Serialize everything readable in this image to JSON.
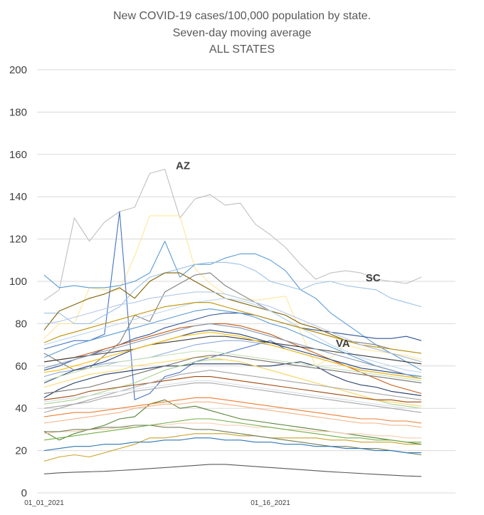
{
  "chart_data": {
    "type": "line",
    "title": [
      "New COVID-19 cases/100,000 population by state.",
      "Seven-day moving average",
      "ALL STATES"
    ],
    "xlabel": "",
    "ylabel": "",
    "ylim": [
      0,
      200
    ],
    "yticks": [
      0,
      20,
      40,
      60,
      80,
      100,
      120,
      140,
      160,
      180,
      200
    ],
    "x_tick_labels": [
      {
        "day": 1,
        "label": "01_01_2021"
      },
      {
        "day": 16,
        "label": "01_16_2021"
      }
    ],
    "x_days": [
      1,
      2,
      3,
      4,
      5,
      6,
      7,
      8,
      9,
      10,
      11,
      12,
      13,
      14,
      15,
      16,
      17,
      18,
      19,
      20,
      21,
      22,
      23,
      24,
      25,
      26,
      27,
      28
    ],
    "grid": true,
    "legend": "none",
    "annotations": [
      {
        "text": "AZ",
        "x": 10.2,
        "y": 153
      },
      {
        "text": "SC",
        "x": 22.8,
        "y": 100
      },
      {
        "text": "VA",
        "x": 20.8,
        "y": 69
      }
    ],
    "series": [
      {
        "color": "#bfbfbf",
        "values": [
          91,
          96,
          130,
          119,
          128,
          133,
          135,
          151,
          153,
          130,
          139,
          141,
          136,
          137,
          127,
          122,
          116,
          108,
          101,
          104,
          105,
          104,
          101,
          100,
          99,
          102,
          null,
          null
        ]
      },
      {
        "color": "#ffe699",
        "values": [
          73,
          80,
          80,
          97,
          96,
          96,
          112,
          131,
          131,
          131,
          106,
          99,
          94,
          92,
          91,
          92,
          93,
          76,
          60,
          64,
          70,
          68,
          67,
          66,
          65,
          63,
          null,
          null
        ]
      },
      {
        "color": "#4472c4",
        "values": [
          68,
          70,
          72,
          72,
          75,
          133,
          44,
          47,
          55,
          57,
          62,
          64,
          66,
          68,
          70,
          72,
          68,
          66,
          64,
          62,
          60,
          58,
          57,
          56,
          55,
          54,
          null,
          null
        ]
      },
      {
        "color": "#5b9bd5",
        "values": [
          103,
          97,
          98,
          97,
          97,
          98,
          100,
          104,
          119,
          102,
          108,
          108,
          111,
          113,
          113,
          110,
          105,
          96,
          92,
          85,
          80,
          75,
          70,
          66,
          62,
          58,
          null,
          null
        ]
      },
      {
        "color": "#2f5597",
        "values": [
          58,
          60,
          63,
          65,
          68,
          70,
          73,
          75,
          78,
          80,
          82,
          84,
          85,
          85,
          84,
          82,
          80,
          78,
          77,
          76,
          75,
          74,
          73,
          73,
          74,
          72,
          null,
          null
        ]
      },
      {
        "color": "#1f3864",
        "values": [
          45,
          49,
          52,
          54,
          56,
          57,
          58,
          59,
          60,
          60,
          61,
          61,
          61,
          61,
          60,
          60,
          61,
          62,
          60,
          56,
          53,
          51,
          50,
          48,
          47,
          46,
          null,
          null
        ]
      },
      {
        "color": "#7f7f7f",
        "values": [
          66,
          62,
          58,
          59,
          65,
          71,
          84,
          81,
          95,
          99,
          103,
          104,
          98,
          94,
          90,
          86,
          82,
          78,
          76,
          74,
          72,
          71,
          70,
          68,
          67,
          66,
          null,
          null
        ]
      },
      {
        "color": "#9dc3e6",
        "values": [
          85,
          85,
          80,
          80,
          84,
          88,
          96,
          102,
          104,
          106,
          108,
          109,
          109,
          108,
          105,
          100,
          98,
          96,
          99,
          100,
          98,
          97,
          96,
          92,
          90,
          88,
          null,
          null
        ]
      },
      {
        "color": "#c9a227",
        "values": [
          15,
          17,
          18,
          17,
          19,
          21,
          23,
          26,
          26,
          27,
          28,
          28,
          28,
          27,
          27,
          26,
          26,
          26,
          26,
          25,
          25,
          24,
          24,
          24,
          23,
          23,
          null,
          null
        ]
      },
      {
        "color": "#7f6000",
        "values": [
          77,
          86,
          89,
          92,
          94,
          97,
          92,
          100,
          104,
          104,
          100,
          96,
          92,
          90,
          88,
          86,
          84,
          80,
          78,
          75,
          72,
          70,
          68,
          66,
          64,
          62,
          null,
          null
        ]
      },
      {
        "color": "#a9d18e",
        "values": [
          42,
          43,
          44,
          46,
          48,
          50,
          52,
          55,
          58,
          60,
          62,
          63,
          63,
          62,
          60,
          58,
          56,
          54,
          52,
          50,
          48,
          46,
          44,
          42,
          41,
          40,
          null,
          null
        ]
      },
      {
        "color": "#548235",
        "values": [
          29,
          25,
          28,
          30,
          32,
          35,
          36,
          42,
          44,
          40,
          41,
          39,
          37,
          35,
          34,
          33,
          32,
          31,
          30,
          29,
          28,
          27,
          26,
          25,
          24,
          23,
          null,
          null
        ]
      },
      {
        "color": "#f4b183",
        "values": [
          33,
          34,
          35,
          36,
          37,
          38,
          40,
          41,
          42,
          42,
          43,
          43,
          42,
          41,
          40,
          39,
          38,
          37,
          36,
          35,
          34,
          33,
          33,
          32,
          32,
          31,
          null,
          null
        ]
      },
      {
        "color": "#c55a11",
        "values": [
          62,
          63,
          64,
          66,
          68,
          70,
          72,
          74,
          76,
          78,
          79,
          80,
          80,
          79,
          77,
          75,
          72,
          69,
          66,
          63,
          60,
          57,
          54,
          51,
          49,
          47,
          null,
          null
        ]
      },
      {
        "color": "#bdd7ee",
        "values": [
          70,
          72,
          74,
          76,
          78,
          80,
          82,
          84,
          86,
          88,
          90,
          91,
          92,
          91,
          89,
          86,
          82,
          78,
          74,
          70,
          67,
          64,
          62,
          60,
          58,
          57,
          null,
          null
        ]
      },
      {
        "color": "#8faadc",
        "values": [
          55,
          57,
          58,
          60,
          61,
          62,
          63,
          64,
          66,
          68,
          70,
          71,
          72,
          72,
          71,
          70,
          68,
          66,
          64,
          62,
          60,
          58,
          57,
          56,
          55,
          54,
          null,
          null
        ]
      },
      {
        "color": "#a6a6a6",
        "values": [
          40,
          41,
          42,
          43,
          45,
          46,
          48,
          49,
          50,
          51,
          52,
          52,
          51,
          50,
          49,
          48,
          47,
          46,
          45,
          44,
          43,
          42,
          41,
          40,
          39,
          38,
          null,
          null
        ]
      },
      {
        "color": "#ffd966",
        "values": [
          50,
          52,
          54,
          56,
          57,
          58,
          60,
          61,
          62,
          63,
          64,
          64,
          63,
          62,
          60,
          58,
          56,
          54,
          52,
          50,
          48,
          46,
          44,
          43,
          42,
          41,
          null,
          null
        ]
      },
      {
        "color": "#264478",
        "values": [
          52,
          55,
          58,
          60,
          62,
          65,
          68,
          70,
          72,
          74,
          76,
          77,
          76,
          75,
          73,
          71,
          69,
          67,
          65,
          63,
          61,
          59,
          58,
          57,
          56,
          55,
          null,
          null
        ]
      },
      {
        "color": "#3a3a3a",
        "values": [
          62,
          63,
          64,
          65,
          66,
          67,
          68,
          70,
          71,
          72,
          73,
          74,
          74,
          73,
          72,
          71,
          70,
          69,
          68,
          67,
          66,
          65,
          64,
          63,
          62,
          61,
          null,
          null
        ]
      },
      {
        "color": "#767171",
        "values": [
          47,
          48,
          49,
          50,
          52,
          54,
          56,
          58,
          60,
          62,
          64,
          65,
          65,
          64,
          63,
          62,
          61,
          60,
          59,
          58,
          57,
          56,
          55,
          54,
          53,
          52,
          null,
          null
        ]
      },
      {
        "color": "#ed7d31",
        "values": [
          36,
          37,
          38,
          38,
          39,
          40,
          41,
          42,
          43,
          44,
          45,
          45,
          44,
          43,
          42,
          41,
          40,
          39,
          38,
          37,
          36,
          35,
          35,
          34,
          34,
          33,
          null,
          null
        ]
      },
      {
        "color": "#f8cbad",
        "values": [
          28,
          29,
          29,
          30,
          30,
          31,
          31,
          32,
          32,
          33,
          33,
          33,
          32,
          32,
          31,
          31,
          30,
          30,
          29,
          29,
          28,
          28,
          27,
          27,
          26,
          26,
          null,
          null
        ]
      },
      {
        "color": "#595959",
        "values": [
          9,
          9.5,
          9.8,
          10,
          10.2,
          10.6,
          11,
          11.5,
          12,
          12.5,
          13,
          13.5,
          13.5,
          13,
          12.5,
          12,
          11.5,
          11,
          10.5,
          10,
          9.6,
          9.2,
          8.8,
          8.4,
          8,
          7.8,
          null,
          null
        ]
      },
      {
        "color": "#6f7f5a",
        "values": [
          29,
          29,
          30,
          30,
          31,
          31,
          32,
          32,
          31,
          31,
          30,
          30,
          29,
          28,
          27,
          26,
          25,
          24,
          23,
          22,
          22,
          21,
          21,
          20,
          19,
          18,
          null,
          null
        ]
      },
      {
        "color": "#9e480e",
        "values": [
          44,
          45,
          46,
          48,
          49,
          50,
          51,
          52,
          53,
          54,
          55,
          55,
          54,
          53,
          52,
          51,
          50,
          49,
          48,
          47,
          46,
          45,
          44,
          44,
          43,
          43,
          null,
          null
        ]
      },
      {
        "color": "#bf9000",
        "values": [
          71,
          74,
          76,
          78,
          80,
          82,
          84,
          86,
          88,
          89,
          90,
          90,
          88,
          86,
          84,
          82,
          80,
          78,
          76,
          74,
          72,
          70,
          69,
          68,
          67,
          66,
          null,
          null
        ]
      },
      {
        "color": "#5a9bd5",
        "values": [
          64,
          67,
          70,
          72,
          74,
          76,
          78,
          80,
          82,
          84,
          86,
          87,
          86,
          85,
          83,
          80,
          78,
          75,
          72,
          69,
          66,
          63,
          60,
          58,
          56,
          55,
          null,
          null
        ]
      },
      {
        "color": "#a5a5a5",
        "values": [
          38,
          40,
          42,
          44,
          46,
          48,
          50,
          52,
          54,
          56,
          57,
          58,
          57,
          56,
          55,
          54,
          53,
          52,
          51,
          50,
          49,
          48,
          47,
          46,
          45,
          44,
          null,
          null
        ]
      },
      {
        "color": "#c5e0b4",
        "values": [
          53,
          55,
          57,
          59,
          60,
          62,
          63,
          64,
          65,
          66,
          67,
          67,
          66,
          65,
          64,
          63,
          62,
          61,
          60,
          59,
          58,
          57,
          56,
          55,
          54,
          53,
          null,
          null
        ]
      },
      {
        "color": "#2e75b6",
        "values": [
          20,
          21,
          22,
          22,
          23,
          23,
          24,
          24,
          25,
          25,
          26,
          26,
          25,
          25,
          24,
          24,
          23,
          23,
          22,
          22,
          21,
          21,
          20,
          20,
          19,
          19,
          null,
          null
        ]
      },
      {
        "color": "#8497b0",
        "values": [
          59,
          61,
          63,
          65,
          67,
          69,
          71,
          73,
          75,
          77,
          79,
          80,
          79,
          78,
          76,
          74,
          72,
          70,
          68,
          66,
          64,
          62,
          60,
          58,
          56,
          54,
          null,
          null
        ]
      },
      {
        "color": "#b4c7e7",
        "values": [
          80,
          81,
          83,
          85,
          87,
          89,
          90,
          92,
          93,
          94,
          95,
          95,
          94,
          92,
          90,
          88,
          85,
          82,
          79,
          76,
          73,
          70,
          68,
          66,
          64,
          62,
          null,
          null
        ]
      },
      {
        "color": "#d6dce5",
        "values": [
          43,
          44,
          45,
          46,
          47,
          48,
          49,
          50,
          51,
          52,
          53,
          53,
          52,
          51,
          50,
          49,
          48,
          47,
          46,
          45,
          44,
          43,
          42,
          41,
          40,
          40,
          null,
          null
        ]
      },
      {
        "color": "#ffc000",
        "values": [
          57,
          58,
          60,
          62,
          64,
          66,
          68,
          70,
          72,
          74,
          75,
          76,
          75,
          74,
          72,
          70,
          68,
          66,
          64,
          62,
          60,
          58,
          57,
          56,
          55,
          54,
          null,
          null
        ]
      },
      {
        "color": "#70ad47",
        "values": [
          25,
          26,
          27,
          28,
          29,
          30,
          31,
          32,
          33,
          34,
          35,
          35,
          34,
          33,
          32,
          31,
          30,
          29,
          28,
          27,
          26,
          26,
          25,
          25,
          24,
          24,
          null,
          null
        ]
      }
    ]
  }
}
